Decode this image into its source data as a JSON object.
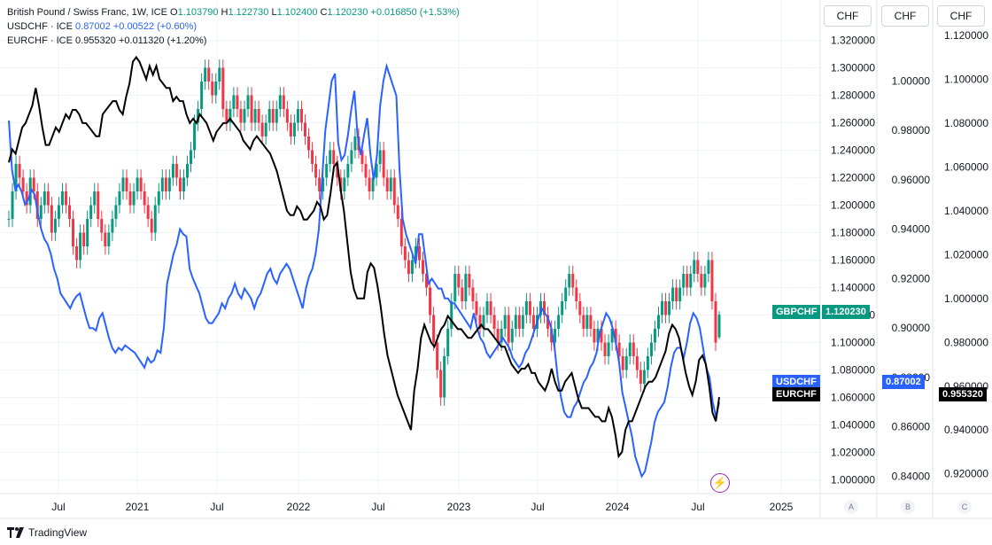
{
  "legend": {
    "main": {
      "symbol": "British Pound / Swiss Franc, 1W, ICE",
      "o_label": "O",
      "o": "1.103790",
      "h_label": "H",
      "h": "1.122730",
      "l_label": "L",
      "l": "1.102400",
      "c_label": "C",
      "c": "1.120230",
      "change": "+0.016850 (+1.53%)",
      "color": "#089981"
    },
    "usd": {
      "symbol": "USDCHF · ICE",
      "value": "0.87002",
      "change": "+0.00522 (+0.60%)",
      "color": "#2962ff"
    },
    "eur": {
      "symbol": "EURCHF · ICE",
      "value": "0.955320",
      "change": "+0.011320 (+1.20%)",
      "color": "#000000"
    }
  },
  "headers": {
    "a": "CHF",
    "b": "CHF",
    "c": "CHF"
  },
  "scale_buttons": {
    "a": "A",
    "b": "B",
    "c": "C"
  },
  "footer": {
    "brand": "TradingView",
    "logo": "tradingview-logo-icon"
  },
  "tags": {
    "gbpchf_name": "GBPCHF",
    "gbpchf_value": "1.120230",
    "usdchf_name": "USDCHF",
    "usdchf_value": "0.87002",
    "eurchf_name": "EURCHF",
    "eurchf_value": "0.955320"
  },
  "colors": {
    "up": "#089981",
    "down": "#f23645",
    "usd": "#2962ff",
    "eur": "#000000",
    "grid": "#f0f3fa",
    "axis": "#e0e3eb"
  },
  "chart_data": {
    "type": "line",
    "x_ticks": [
      "Jul",
      "2021",
      "Jul",
      "2022",
      "Jul",
      "2023",
      "Jul",
      "2024",
      "Jul",
      "2025"
    ],
    "axes": {
      "A": {
        "label": "CHF",
        "ticks": [
          "1.000000",
          "1.020000",
          "1.040000",
          "1.060000",
          "1.080000",
          "1.100000",
          "1.120000",
          "1.140000",
          "1.160000",
          "1.180000",
          "1.200000",
          "1.220000",
          "1.240000",
          "1.260000",
          "1.280000",
          "1.300000",
          "1.320000"
        ],
        "range": [
          0.99,
          1.33
        ]
      },
      "B": {
        "label": "CHF",
        "ticks": [
          "0.84000",
          "0.86000",
          "0.88000",
          "0.90000",
          "0.92000",
          "0.94000",
          "0.96000",
          "0.98000",
          "1.00000"
        ],
        "range": [
          0.833,
          1.022
        ]
      },
      "C": {
        "label": "CHF",
        "ticks": [
          "0.920000",
          "0.940000",
          "0.960000",
          "0.980000",
          "1.000000",
          "1.020000",
          "1.040000",
          "1.060000",
          "1.080000",
          "1.100000",
          "1.120000"
        ],
        "range": [
          0.911,
          1.124
        ]
      }
    },
    "series": [
      {
        "name": "GBPCHF",
        "type": "candlestick",
        "axis": "A",
        "closes": [
          1.19,
          1.21,
          1.23,
          1.22,
          1.21,
          1.2,
          1.22,
          1.21,
          1.19,
          1.2,
          1.21,
          1.2,
          1.18,
          1.19,
          1.2,
          1.21,
          1.2,
          1.19,
          1.17,
          1.16,
          1.18,
          1.17,
          1.19,
          1.2,
          1.21,
          1.19,
          1.18,
          1.17,
          1.18,
          1.19,
          1.2,
          1.21,
          1.22,
          1.21,
          1.2,
          1.21,
          1.22,
          1.21,
          1.2,
          1.19,
          1.18,
          1.2,
          1.21,
          1.22,
          1.21,
          1.22,
          1.23,
          1.22,
          1.21,
          1.22,
          1.23,
          1.24,
          1.26,
          1.27,
          1.29,
          1.3,
          1.29,
          1.28,
          1.29,
          1.3,
          1.27,
          1.26,
          1.27,
          1.28,
          1.27,
          1.26,
          1.27,
          1.28,
          1.26,
          1.27,
          1.26,
          1.25,
          1.26,
          1.27,
          1.26,
          1.27,
          1.28,
          1.27,
          1.26,
          1.25,
          1.26,
          1.27,
          1.26,
          1.25,
          1.24,
          1.23,
          1.22,
          1.21,
          1.22,
          1.23,
          1.24,
          1.23,
          1.22,
          1.21,
          1.22,
          1.23,
          1.24,
          1.25,
          1.24,
          1.23,
          1.22,
          1.21,
          1.22,
          1.23,
          1.24,
          1.22,
          1.21,
          1.22,
          1.2,
          1.19,
          1.17,
          1.16,
          1.15,
          1.16,
          1.17,
          1.16,
          1.15,
          1.14,
          1.12,
          1.1,
          1.08,
          1.06,
          1.09,
          1.11,
          1.13,
          1.15,
          1.14,
          1.13,
          1.15,
          1.14,
          1.13,
          1.12,
          1.11,
          1.12,
          1.13,
          1.12,
          1.11,
          1.1,
          1.11,
          1.12,
          1.1,
          1.11,
          1.12,
          1.11,
          1.12,
          1.13,
          1.12,
          1.11,
          1.12,
          1.13,
          1.12,
          1.11,
          1.1,
          1.11,
          1.12,
          1.13,
          1.14,
          1.15,
          1.14,
          1.13,
          1.12,
          1.11,
          1.12,
          1.11,
          1.1,
          1.11,
          1.1,
          1.09,
          1.1,
          1.11,
          1.1,
          1.09,
          1.08,
          1.09,
          1.1,
          1.09,
          1.08,
          1.07,
          1.08,
          1.09,
          1.1,
          1.11,
          1.12,
          1.13,
          1.12,
          1.13,
          1.14,
          1.13,
          1.14,
          1.15,
          1.14,
          1.15,
          1.16,
          1.15,
          1.14,
          1.15,
          1.16,
          1.13,
          1.1,
          1.12
        ],
        "open": 1.10379,
        "high": 1.12273,
        "low": 1.1024,
        "close": 1.12023
      },
      {
        "name": "USDCHF",
        "type": "line",
        "axis": "B",
        "values": [
          0.984,
          0.964,
          0.956,
          0.958,
          0.955,
          0.95,
          0.952,
          0.956,
          0.954,
          0.946,
          0.94,
          0.936,
          0.934,
          0.93,
          0.924,
          0.92,
          0.914,
          0.912,
          0.91,
          0.908,
          0.911,
          0.913,
          0.914,
          0.909,
          0.904,
          0.9,
          0.9,
          0.899,
          0.904,
          0.906,
          0.901,
          0.896,
          0.892,
          0.89,
          0.892,
          0.891,
          0.893,
          0.892,
          0.891,
          0.89,
          0.888,
          0.886,
          0.884,
          0.888,
          0.886,
          0.887,
          0.891,
          0.89,
          0.9,
          0.918,
          0.924,
          0.93,
          0.934,
          0.94,
          0.938,
          0.937,
          0.924,
          0.92,
          0.917,
          0.914,
          0.909,
          0.904,
          0.902,
          0.902,
          0.904,
          0.906,
          0.91,
          0.908,
          0.912,
          0.914,
          0.918,
          0.914,
          0.912,
          0.916,
          0.914,
          0.912,
          0.908,
          0.912,
          0.914,
          0.918,
          0.922,
          0.924,
          0.92,
          0.918,
          0.922,
          0.924,
          0.926,
          0.924,
          0.92,
          0.916,
          0.912,
          0.908,
          0.916,
          0.921,
          0.924,
          0.93,
          0.94,
          0.96,
          0.98,
          0.99,
          1.0,
          1.003,
          0.975,
          0.968,
          0.97,
          0.978,
          0.988,
          0.996,
          0.978,
          0.97,
          0.978,
          0.985,
          0.97,
          0.96,
          0.97,
          0.99,
          1.0,
          1.006,
          1.002,
          0.998,
          0.994,
          0.964,
          0.944,
          0.938,
          0.934,
          0.93,
          0.926,
          0.938,
          0.938,
          0.928,
          0.918,
          0.92,
          0.918,
          0.916,
          0.916,
          0.912,
          0.912,
          0.91,
          0.91,
          0.908,
          0.906,
          0.904,
          0.902,
          0.9,
          0.906,
          0.9,
          0.896,
          0.894,
          0.89,
          0.888,
          0.89,
          0.892,
          0.894,
          0.896,
          0.894,
          0.892,
          0.888,
          0.886,
          0.884,
          0.886,
          0.89,
          0.892,
          0.896,
          0.9,
          0.904,
          0.908,
          0.906,
          0.904,
          0.9,
          0.892,
          0.88,
          0.872,
          0.866,
          0.864,
          0.864,
          0.868,
          0.87,
          0.874,
          0.878,
          0.88,
          0.884,
          0.886,
          0.89,
          0.898,
          0.902,
          0.906,
          0.904,
          0.9,
          0.894,
          0.886,
          0.874,
          0.868,
          0.862,
          0.856,
          0.848,
          0.844,
          0.84,
          0.842,
          0.848,
          0.854,
          0.862,
          0.866,
          0.868,
          0.87,
          0.876,
          0.884,
          0.89,
          0.892,
          0.892,
          0.888,
          0.894,
          0.902,
          0.906,
          0.904,
          0.9,
          0.892,
          0.884,
          0.88,
          0.87,
          0.864,
          0.87
        ],
        "last": 0.87002
      },
      {
        "name": "EURCHF",
        "type": "line",
        "axis": "C",
        "values": [
          1.062,
          1.068,
          1.066,
          1.072,
          1.078,
          1.08,
          1.084,
          1.088,
          1.096,
          1.088,
          1.078,
          1.07,
          1.07,
          1.074,
          1.078,
          1.076,
          1.08,
          1.084,
          1.082,
          1.086,
          1.086,
          1.084,
          1.08,
          1.08,
          1.078,
          1.076,
          1.074,
          1.074,
          1.084,
          1.086,
          1.088,
          1.09,
          1.09,
          1.086,
          1.084,
          1.092,
          1.098,
          1.108,
          1.11,
          1.108,
          1.104,
          1.1,
          1.106,
          1.102,
          1.106,
          1.1,
          1.098,
          1.096,
          1.096,
          1.09,
          1.092,
          1.09,
          1.09,
          1.084,
          1.08,
          1.082,
          1.08,
          1.084,
          1.082,
          1.08,
          1.076,
          1.072,
          1.076,
          1.078,
          1.08,
          1.08,
          1.082,
          1.08,
          1.078,
          1.076,
          1.072,
          1.07,
          1.068,
          1.072,
          1.074,
          1.072,
          1.07,
          1.068,
          1.066,
          1.062,
          1.058,
          1.052,
          1.046,
          1.04,
          1.038,
          1.038,
          1.042,
          1.04,
          1.036,
          1.036,
          1.038,
          1.04,
          1.044,
          1.042,
          1.036,
          1.038,
          1.048,
          1.06,
          1.062,
          1.05,
          1.04,
          1.026,
          1.012,
          1.004,
          1.0,
          1.0,
          1.0,
          1.012,
          1.016,
          1.014,
          1.006,
          0.996,
          0.984,
          0.974,
          0.968,
          0.962,
          0.956,
          0.952,
          0.948,
          0.944,
          0.94,
          0.958,
          0.968,
          0.982,
          0.988,
          0.984,
          0.98,
          0.978,
          0.982,
          0.986,
          0.988,
          0.992,
          0.99,
          0.988,
          0.986,
          0.986,
          0.984,
          0.982,
          0.982,
          0.984,
          0.986,
          0.988,
          0.986,
          0.986,
          0.984,
          0.982,
          0.98,
          0.978,
          0.978,
          0.974,
          0.97,
          0.968,
          0.966,
          0.968,
          0.968,
          0.97,
          0.966,
          0.966,
          0.962,
          0.96,
          0.958,
          0.962,
          0.968,
          0.962,
          0.958,
          0.958,
          0.962,
          0.964,
          0.966,
          0.96,
          0.954,
          0.95,
          0.95,
          0.95,
          0.948,
          0.946,
          0.946,
          0.944,
          0.944,
          0.95,
          0.946,
          0.938,
          0.928,
          0.93,
          0.94,
          0.944,
          0.944,
          0.948,
          0.952,
          0.956,
          0.96,
          0.962,
          0.962,
          0.964,
          0.968,
          0.972,
          0.976,
          0.984,
          0.988,
          0.986,
          0.982,
          0.974,
          0.966,
          0.96,
          0.956,
          0.962,
          0.972,
          0.974,
          0.97,
          0.96,
          0.948,
          0.944,
          0.955
        ],
        "last": 0.95532
      }
    ]
  }
}
